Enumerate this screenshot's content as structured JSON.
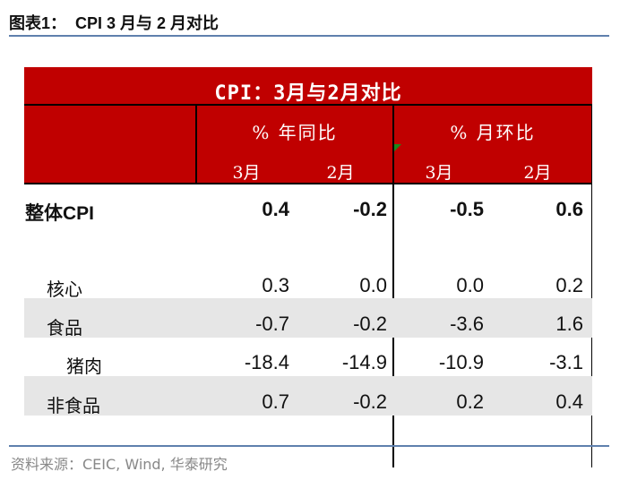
{
  "figure_title": "图表1：  CPI 3 月与 2 月对比",
  "table": {
    "title": "CPI：3月与2月对比",
    "groups": [
      "% 年同比",
      "% 月环比"
    ],
    "months": [
      "3月",
      "2月",
      "3月",
      "2月"
    ],
    "rows": [
      {
        "label": "整体CPI",
        "values": [
          "0.4",
          "-0.2",
          "-0.5",
          "0.6"
        ]
      },
      {
        "label": "核心",
        "values": [
          "0.3",
          "0.0",
          "0.0",
          "0.2"
        ]
      },
      {
        "label": "食品",
        "values": [
          "-0.7",
          "-0.2",
          "-3.6",
          "1.6"
        ]
      },
      {
        "label": "猪肉",
        "values": [
          "-18.4",
          "-14.9",
          "-10.9",
          "-3.1"
        ]
      },
      {
        "label": "非食品",
        "values": [
          "0.7",
          "-0.2",
          "0.2",
          "0.4"
        ]
      }
    ]
  },
  "source": "资料来源：CEIC, Wind, 华泰研究",
  "colors": {
    "header": "#c00000",
    "rule": "#5f80ad",
    "stripe": "#e6e6e6"
  }
}
